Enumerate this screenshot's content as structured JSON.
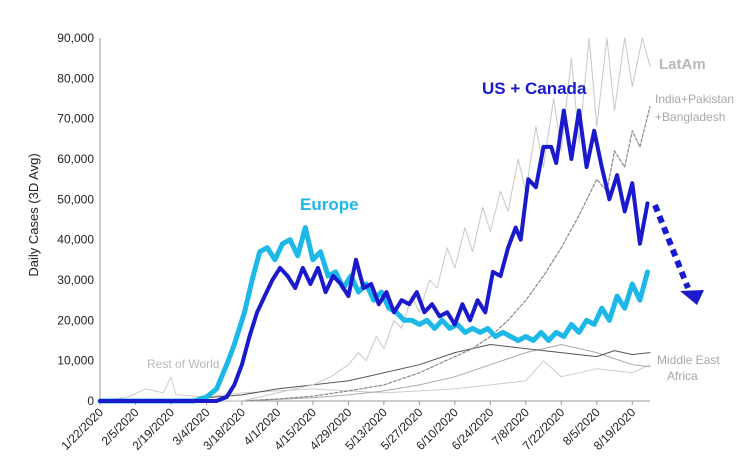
{
  "chart_data": {
    "type": "line",
    "ylabel": "Daily Cases (3D Avg)",
    "ylim": [
      0,
      90000
    ],
    "yticks": [
      0,
      10000,
      20000,
      30000,
      40000,
      50000,
      60000,
      70000,
      80000,
      90000
    ],
    "ytick_labels": [
      "0",
      "10,000",
      "20,000",
      "30,000",
      "40,000",
      "50,000",
      "60,000",
      "70,000",
      "80,000",
      "90,000"
    ],
    "x_labels": [
      "1/22/2020",
      "2/5/2020",
      "2/19/2020",
      "3/4/2020",
      "3/18/2020",
      "4/1/2020",
      "4/15/2020",
      "4/29/2020",
      "5/13/2020",
      "5/27/2020",
      "6/10/2020",
      "6/24/2020",
      "7/8/2020",
      "7/22/2020",
      "8/5/2020",
      "8/19/2020"
    ],
    "grid": false,
    "series": [
      {
        "name": "US + Canada",
        "color": "#1a1acc",
        "label_color": "#1a1acc",
        "points": [
          [
            "1/22/2020",
            0
          ],
          [
            "3/8/2020",
            0
          ],
          [
            "3/12/2020",
            1000
          ],
          [
            "3/15/2020",
            4000
          ],
          [
            "3/18/2020",
            9000
          ],
          [
            "3/21/2020",
            16000
          ],
          [
            "3/24/2020",
            22000
          ],
          [
            "3/27/2020",
            26000
          ],
          [
            "3/30/2020",
            30000
          ],
          [
            "4/2/2020",
            33000
          ],
          [
            "4/5/2020",
            31000
          ],
          [
            "4/8/2020",
            28000
          ],
          [
            "4/11/2020",
            33000
          ],
          [
            "4/14/2020",
            29000
          ],
          [
            "4/17/2020",
            33000
          ],
          [
            "4/20/2020",
            27000
          ],
          [
            "4/23/2020",
            31000
          ],
          [
            "4/26/2020",
            29000
          ],
          [
            "4/29/2020",
            26000
          ],
          [
            "5/2/2020",
            35000
          ],
          [
            "5/5/2020",
            28000
          ],
          [
            "5/8/2020",
            29000
          ],
          [
            "5/11/2020",
            24000
          ],
          [
            "5/14/2020",
            27000
          ],
          [
            "5/17/2020",
            22000
          ],
          [
            "5/20/2020",
            25000
          ],
          [
            "5/23/2020",
            24000
          ],
          [
            "5/26/2020",
            27000
          ],
          [
            "5/29/2020",
            22000
          ],
          [
            "6/1/2020",
            24000
          ],
          [
            "6/4/2020",
            21000
          ],
          [
            "6/7/2020",
            22000
          ],
          [
            "6/10/2020",
            19000
          ],
          [
            "6/13/2020",
            24000
          ],
          [
            "6/16/2020",
            20000
          ],
          [
            "6/19/2020",
            25000
          ],
          [
            "6/22/2020",
            22000
          ],
          [
            "6/25/2020",
            32000
          ],
          [
            "6/28/2020",
            31000
          ],
          [
            "7/1/2020",
            38000
          ],
          [
            "7/4/2020",
            43000
          ],
          [
            "7/6/2020",
            40000
          ],
          [
            "7/9/2020",
            55000
          ],
          [
            "7/12/2020",
            53000
          ],
          [
            "7/15/2020",
            63000
          ],
          [
            "7/18/2020",
            63000
          ],
          [
            "7/20/2020",
            59000
          ],
          [
            "7/23/2020",
            72000
          ],
          [
            "7/26/2020",
            60000
          ],
          [
            "7/29/2020",
            72000
          ],
          [
            "8/1/2020",
            58000
          ],
          [
            "8/4/2020",
            67000
          ],
          [
            "8/7/2020",
            58000
          ],
          [
            "8/10/2020",
            50000
          ],
          [
            "8/13/2020",
            56000
          ],
          [
            "8/16/2020",
            47000
          ],
          [
            "8/19/2020",
            54000
          ],
          [
            "8/22/2020",
            39000
          ],
          [
            "8/25/2020",
            49000
          ]
        ]
      },
      {
        "name": "Europe",
        "color": "#1cb8e8",
        "label_color": "#1cb8e8",
        "points": [
          [
            "1/22/2020",
            0
          ],
          [
            "2/28/2020",
            0
          ],
          [
            "3/4/2020",
            1000
          ],
          [
            "3/8/2020",
            3000
          ],
          [
            "3/12/2020",
            9000
          ],
          [
            "3/15/2020",
            14000
          ],
          [
            "3/19/2020",
            22000
          ],
          [
            "3/22/2020",
            30000
          ],
          [
            "3/25/2020",
            37000
          ],
          [
            "3/28/2020",
            38000
          ],
          [
            "3/31/2020",
            35000
          ],
          [
            "4/3/2020",
            39000
          ],
          [
            "4/6/2020",
            40000
          ],
          [
            "4/9/2020",
            36000
          ],
          [
            "4/12/2020",
            43000
          ],
          [
            "4/15/2020",
            35000
          ],
          [
            "4/18/2020",
            37000
          ],
          [
            "4/21/2020",
            31000
          ],
          [
            "4/24/2020",
            32000
          ],
          [
            "4/27/2020",
            28000
          ],
          [
            "4/30/2020",
            31000
          ],
          [
            "5/3/2020",
            27000
          ],
          [
            "5/6/2020",
            29000
          ],
          [
            "5/9/2020",
            25000
          ],
          [
            "5/12/2020",
            27000
          ],
          [
            "5/15/2020",
            23000
          ],
          [
            "5/18/2020",
            22000
          ],
          [
            "5/21/2020",
            20000
          ],
          [
            "5/24/2020",
            20000
          ],
          [
            "5/27/2020",
            19000
          ],
          [
            "5/30/2020",
            20000
          ],
          [
            "6/2/2020",
            18000
          ],
          [
            "6/5/2020",
            20000
          ],
          [
            "6/8/2020",
            18000
          ],
          [
            "6/11/2020",
            19000
          ],
          [
            "6/14/2020",
            17000
          ],
          [
            "6/17/2020",
            18000
          ],
          [
            "6/20/2020",
            17000
          ],
          [
            "6/23/2020",
            18000
          ],
          [
            "6/26/2020",
            16000
          ],
          [
            "6/29/2020",
            17000
          ],
          [
            "7/2/2020",
            16000
          ],
          [
            "7/5/2020",
            15000
          ],
          [
            "7/8/2020",
            16000
          ],
          [
            "7/11/2020",
            15000
          ],
          [
            "7/14/2020",
            17000
          ],
          [
            "7/17/2020",
            15000
          ],
          [
            "7/20/2020",
            17000
          ],
          [
            "7/23/2020",
            16000
          ],
          [
            "7/26/2020",
            19000
          ],
          [
            "7/29/2020",
            17000
          ],
          [
            "8/1/2020",
            20000
          ],
          [
            "8/4/2020",
            19000
          ],
          [
            "8/7/2020",
            23000
          ],
          [
            "8/10/2020",
            20000
          ],
          [
            "8/13/2020",
            26000
          ],
          [
            "8/16/2020",
            23000
          ],
          [
            "8/19/2020",
            29000
          ],
          [
            "8/22/2020",
            25000
          ],
          [
            "8/25/2020",
            32000
          ]
        ]
      },
      {
        "name": "LatAm",
        "color": "#c8c8c8",
        "label_color": "#b8b8b8",
        "points": [
          [
            "1/22/2020",
            0
          ],
          [
            "3/18/2020",
            0
          ],
          [
            "3/25/2020",
            1000
          ],
          [
            "4/1/2020",
            2000
          ],
          [
            "4/8/2020",
            3000
          ],
          [
            "4/15/2020",
            4000
          ],
          [
            "4/22/2020",
            6000
          ],
          [
            "4/29/2020",
            9000
          ],
          [
            "5/3/2020",
            12000
          ],
          [
            "5/6/2020",
            10000
          ],
          [
            "5/10/2020",
            16000
          ],
          [
            "5/13/2020",
            13000
          ],
          [
            "5/17/2020",
            20000
          ],
          [
            "5/20/2020",
            18000
          ],
          [
            "5/24/2020",
            26000
          ],
          [
            "5/27/2020",
            22000
          ],
          [
            "5/31/2020",
            30000
          ],
          [
            "6/3/2020",
            28000
          ],
          [
            "6/7/2020",
            38000
          ],
          [
            "6/10/2020",
            33000
          ],
          [
            "6/14/2020",
            43000
          ],
          [
            "6/17/2020",
            37000
          ],
          [
            "6/21/2020",
            48000
          ],
          [
            "6/24/2020",
            42000
          ],
          [
            "6/28/2020",
            52000
          ],
          [
            "7/1/2020",
            47000
          ],
          [
            "7/5/2020",
            60000
          ],
          [
            "7/8/2020",
            52000
          ],
          [
            "7/12/2020",
            68000
          ],
          [
            "7/15/2020",
            58000
          ],
          [
            "7/19/2020",
            75000
          ],
          [
            "7/22/2020",
            62000
          ],
          [
            "7/26/2020",
            85000
          ],
          [
            "7/29/2020",
            64000
          ],
          [
            "8/2/2020",
            90000
          ],
          [
            "8/5/2020",
            68000
          ],
          [
            "8/9/2020",
            90000
          ],
          [
            "8/12/2020",
            72000
          ],
          [
            "8/16/2020",
            90000
          ],
          [
            "8/19/2020",
            78000
          ],
          [
            "8/23/2020",
            90000
          ],
          [
            "8/26/2020",
            83000
          ]
        ]
      },
      {
        "name": "India+Pakistan +Bangladesh",
        "label_lines": [
          "India+Pakistan",
          "+Bangladesh"
        ],
        "color": "#888888",
        "dashed": true,
        "label_color": "#a8a8a8",
        "points": [
          [
            "1/22/2020",
            0
          ],
          [
            "3/18/2020",
            0
          ],
          [
            "4/1/2020",
            500
          ],
          [
            "4/15/2020",
            1200
          ],
          [
            "4/29/2020",
            2500
          ],
          [
            "5/13/2020",
            4000
          ],
          [
            "5/27/2020",
            7000
          ],
          [
            "6/10/2020",
            11000
          ],
          [
            "6/17/2020",
            13000
          ],
          [
            "6/24/2020",
            16000
          ],
          [
            "7/1/2020",
            20000
          ],
          [
            "7/8/2020",
            25000
          ],
          [
            "7/15/2020",
            31000
          ],
          [
            "7/22/2020",
            38000
          ],
          [
            "7/29/2020",
            46000
          ],
          [
            "8/5/2020",
            55000
          ],
          [
            "8/9/2020",
            52000
          ],
          [
            "8/12/2020",
            62000
          ],
          [
            "8/16/2020",
            58000
          ],
          [
            "8/19/2020",
            67000
          ],
          [
            "8/22/2020",
            63000
          ],
          [
            "8/26/2020",
            73000
          ]
        ]
      },
      {
        "name": "Middle East",
        "color": "#555555",
        "label_color": "#a8a8a8",
        "points": [
          [
            "1/22/2020",
            0
          ],
          [
            "2/19/2020",
            0
          ],
          [
            "3/4/2020",
            800
          ],
          [
            "3/18/2020",
            1500
          ],
          [
            "4/1/2020",
            3000
          ],
          [
            "4/15/2020",
            4000
          ],
          [
            "4/29/2020",
            5000
          ],
          [
            "5/13/2020",
            7000
          ],
          [
            "5/27/2020",
            9000
          ],
          [
            "6/10/2020",
            12000
          ],
          [
            "6/24/2020",
            14000
          ],
          [
            "7/8/2020",
            13000
          ],
          [
            "7/22/2020",
            12000
          ],
          [
            "8/5/2020",
            11000
          ],
          [
            "8/12/2020",
            12500
          ],
          [
            "8/19/2020",
            11500
          ],
          [
            "8/26/2020",
            12000
          ]
        ]
      },
      {
        "name": "Africa",
        "color": "#aaaaaa",
        "label_color": "#a8a8a8",
        "points": [
          [
            "1/22/2020",
            0
          ],
          [
            "3/18/2020",
            0
          ],
          [
            "4/1/2020",
            400
          ],
          [
            "4/15/2020",
            800
          ],
          [
            "4/29/2020",
            1500
          ],
          [
            "5/13/2020",
            2500
          ],
          [
            "5/27/2020",
            4000
          ],
          [
            "6/10/2020",
            6000
          ],
          [
            "6/24/2020",
            9000
          ],
          [
            "7/8/2020",
            12000
          ],
          [
            "7/22/2020",
            14000
          ],
          [
            "8/5/2020",
            12000
          ],
          [
            "8/19/2020",
            9000
          ],
          [
            "8/26/2020",
            8500
          ]
        ]
      },
      {
        "name": "Rest of World",
        "color": "#cccccc",
        "label_color": "#b8b8b8",
        "points": [
          [
            "1/22/2020",
            0
          ],
          [
            "2/2/2020",
            1000
          ],
          [
            "2/9/2020",
            3000
          ],
          [
            "2/16/2020",
            2000
          ],
          [
            "2/19/2020",
            6000
          ],
          [
            "2/21/2020",
            1500
          ],
          [
            "3/4/2020",
            1000
          ],
          [
            "3/18/2020",
            2000
          ],
          [
            "4/1/2020",
            2500
          ],
          [
            "4/15/2020",
            3000
          ],
          [
            "4/29/2020",
            2500
          ],
          [
            "5/13/2020",
            2000
          ],
          [
            "5/27/2020",
            2500
          ],
          [
            "6/10/2020",
            3000
          ],
          [
            "6/24/2020",
            4000
          ],
          [
            "7/8/2020",
            5000
          ],
          [
            "7/15/2020",
            10000
          ],
          [
            "7/22/2020",
            6000
          ],
          [
            "8/5/2020",
            8000
          ],
          [
            "8/19/2020",
            7000
          ],
          [
            "8/26/2020",
            9000
          ]
        ]
      }
    ]
  }
}
